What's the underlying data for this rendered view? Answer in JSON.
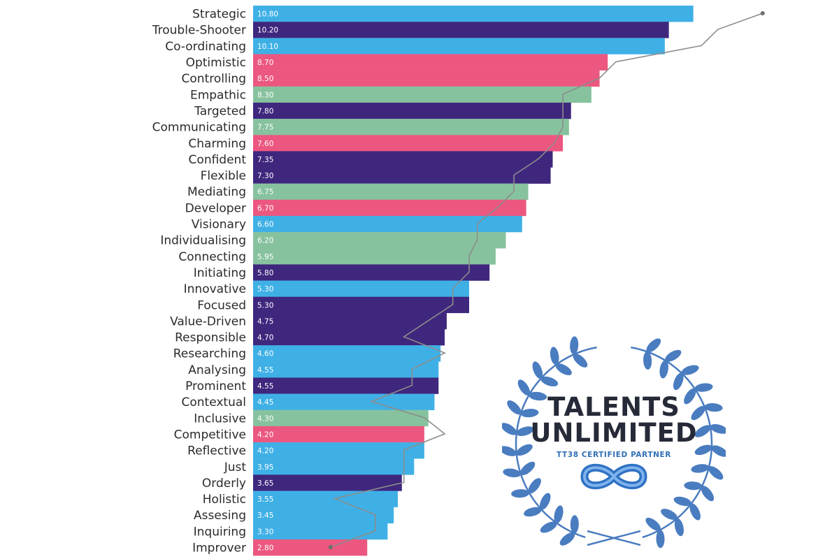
{
  "chart_data": {
    "type": "bar",
    "orientation": "horizontal",
    "categories": [
      "Strategic",
      "Trouble-Shooter",
      "Co-ordinating",
      "Optimistic",
      "Controlling",
      "Empathic",
      "Targeted",
      "Communicating",
      "Charming",
      "Confident",
      "Flexible",
      "Mediating",
      "Developer",
      "Visionary",
      "Individualising",
      "Connecting",
      "Initiating",
      "Innovative",
      "Focused",
      "Value-Driven",
      "Responsible",
      "Researching",
      "Analysing",
      "Prominent",
      "Contextual",
      "Inclusive",
      "Competitive",
      "Reflective",
      "Just",
      "Orderly",
      "Holistic",
      "Assesing",
      "Inquiring",
      "Improver"
    ],
    "values": [
      10.8,
      10.2,
      10.1,
      8.7,
      8.5,
      8.3,
      7.8,
      7.75,
      7.6,
      7.35,
      7.3,
      6.75,
      6.7,
      6.6,
      6.2,
      5.95,
      5.8,
      5.3,
      5.3,
      4.75,
      4.7,
      4.6,
      4.55,
      4.55,
      4.45,
      4.3,
      4.2,
      4.2,
      3.95,
      3.65,
      3.55,
      3.45,
      3.3,
      2.8
    ],
    "value_labels": [
      "10.80",
      "10.20",
      "10.10",
      "8.70",
      "8.50",
      "8.30",
      "7.80",
      "7.75",
      "7.60",
      "7.35",
      "7.30",
      "6.75",
      "6.70",
      "6.60",
      "6.20",
      "5.95",
      "5.80",
      "5.30",
      "5.30",
      "4.75",
      "4.70",
      "4.60",
      "4.55",
      "4.55",
      "4.45",
      "4.30",
      "4.20",
      "4.20",
      "3.95",
      "3.65",
      "3.55",
      "3.45",
      "3.30",
      "2.80"
    ],
    "bar_colors": [
      "#3fb0e6",
      "#3f277e",
      "#3fb0e6",
      "#ec5780",
      "#ec5780",
      "#87c29f",
      "#3f277e",
      "#87c29f",
      "#ec5780",
      "#3f277e",
      "#3f277e",
      "#87c29f",
      "#ec5780",
      "#3fb0e6",
      "#87c29f",
      "#87c29f",
      "#3f277e",
      "#3fb0e6",
      "#3f277e",
      "#3f277e",
      "#3f277e",
      "#3fb0e6",
      "#3fb0e6",
      "#3f277e",
      "#3fb0e6",
      "#87c29f",
      "#ec5780",
      "#3fb0e6",
      "#3fb0e6",
      "#3f277e",
      "#3fb0e6",
      "#3fb0e6",
      "#3fb0e6",
      "#ec5780"
    ],
    "overlay_line": {
      "color": "#8c8c8c",
      "values": [
        12.5,
        11.4,
        11.0,
        8.9,
        8.5,
        7.6,
        7.6,
        7.6,
        7.4,
        7.0,
        6.4,
        6.4,
        6.0,
        5.5,
        5.5,
        5.3,
        5.3,
        4.9,
        4.9,
        4.3,
        3.7,
        4.7,
        3.9,
        3.9,
        2.9,
        4.2,
        4.7,
        3.7,
        3.7,
        3.7,
        2.0,
        3.0,
        3.0,
        1.9
      ]
    },
    "xlim": [
      0,
      13
    ],
    "grid": false,
    "legend": "none"
  },
  "badge": {
    "title_line1": "TALENTS",
    "title_line2": "UNLIMITED",
    "subtitle": "TT38 CERTIFIED PARTNER",
    "icon": "infinity-icon",
    "wreath": "laurel-wreath-icon",
    "wreath_color": "#4a7cc0",
    "title_color": "#262a38",
    "subtitle_color": "#2f6fb5"
  }
}
